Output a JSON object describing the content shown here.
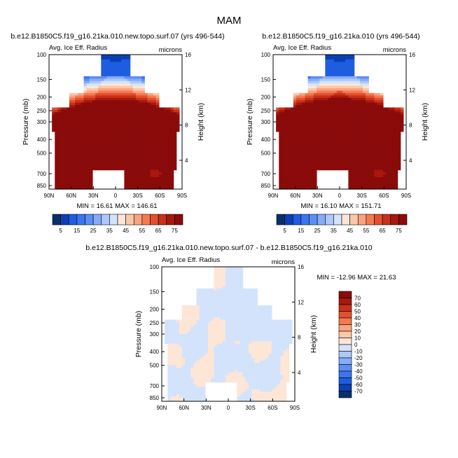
{
  "page_title": "MAM",
  "chart_data": [
    {
      "type": "heatmap",
      "title": "b.e12.B1850C5.f19_g16.21ka.010.new.topo.surf.07 (yrs 496-544)",
      "left_label": "Avg. Ice Eff. Radius",
      "right_label": "microns",
      "xlabel": "",
      "ylabel": "Pressure (mb)",
      "ylabel_right": "Height (km)",
      "x_ticks": [
        "90N",
        "60N",
        "30N",
        "0",
        "30S",
        "60S",
        "90S"
      ],
      "y_ticks": [
        "100",
        "150",
        "200",
        "250",
        "300",
        "400",
        "500",
        "700",
        "850"
      ],
      "height_ticks": [
        "16",
        "12",
        "8",
        "4"
      ],
      "stats": "MIN = 16.61   MAX = 146.61",
      "min": 16.61,
      "max": 146.61,
      "levels": [
        5,
        10,
        15,
        20,
        25,
        30,
        35,
        40,
        45,
        50,
        55,
        60,
        65,
        70,
        75
      ],
      "colorbar_labels": [
        "5",
        "15",
        "25",
        "35",
        "45",
        "55",
        "65",
        "75"
      ]
    },
    {
      "type": "heatmap",
      "title": "b.e12.B1850C5.f19_g16.21ka.010 (yrs 496-544)",
      "left_label": "Avg. Ice Eff. Radius",
      "right_label": "microns",
      "xlabel": "",
      "ylabel": "Pressure (mb)",
      "ylabel_right": "Height (km)",
      "x_ticks": [
        "90N",
        "60N",
        "30N",
        "0",
        "30S",
        "60S",
        "90S"
      ],
      "y_ticks": [
        "100",
        "150",
        "200",
        "250",
        "300",
        "400",
        "500",
        "700",
        "850"
      ],
      "height_ticks": [
        "16",
        "12",
        "8",
        "4"
      ],
      "stats": "MIN = 16.10   MAX = 151.71",
      "min": 16.1,
      "max": 151.71,
      "levels": [
        5,
        10,
        15,
        20,
        25,
        30,
        35,
        40,
        45,
        50,
        55,
        60,
        65,
        70,
        75
      ],
      "colorbar_labels": [
        "5",
        "15",
        "25",
        "35",
        "45",
        "55",
        "65",
        "75"
      ]
    },
    {
      "type": "heatmap",
      "title": "b.e12.B1850C5.f19_g16.21ka.010.new.topo.surf.07 - b.e12.B1850C5.f19_g16.21ka.010",
      "left_label": "Avg. Ice Eff. Radius",
      "right_label": "microns",
      "xlabel": "",
      "ylabel": "Pressure (mb)",
      "ylabel_right": "Height (km)",
      "x_ticks": [
        "90N",
        "60N",
        "30N",
        "0",
        "30S",
        "60S",
        "90S"
      ],
      "y_ticks": [
        "100",
        "150",
        "200",
        "250",
        "300",
        "400",
        "500",
        "700",
        "850"
      ],
      "height_ticks": [
        "16",
        "12",
        "8",
        "4"
      ],
      "stats": "MIN = -12.96   MAX =  21.63",
      "min": -12.96,
      "max": 21.63,
      "levels": [
        -70,
        -60,
        -50,
        -40,
        -30,
        -20,
        -10,
        0,
        10,
        20,
        30,
        40,
        50,
        60,
        70
      ],
      "colorbar_labels": [
        "70",
        "60",
        "50",
        "40",
        "30",
        "20",
        "10",
        "0",
        "-10",
        "-20",
        "-30",
        "-40",
        "-50",
        "-60",
        "-70"
      ]
    }
  ],
  "colors": {
    "seq": [
      "#08306b",
      "#0a3fb5",
      "#1f5de0",
      "#3b76f0",
      "#5c8ff5",
      "#86acf8",
      "#adc8fb",
      "#d3e3fc",
      "#fde6d6",
      "#fcc8aa",
      "#fba37f",
      "#f57a52",
      "#e4502f",
      "#c8311a",
      "#a8180c",
      "#8a0b0b"
    ],
    "empty": "#ffffff",
    "land": "#ffffff"
  }
}
